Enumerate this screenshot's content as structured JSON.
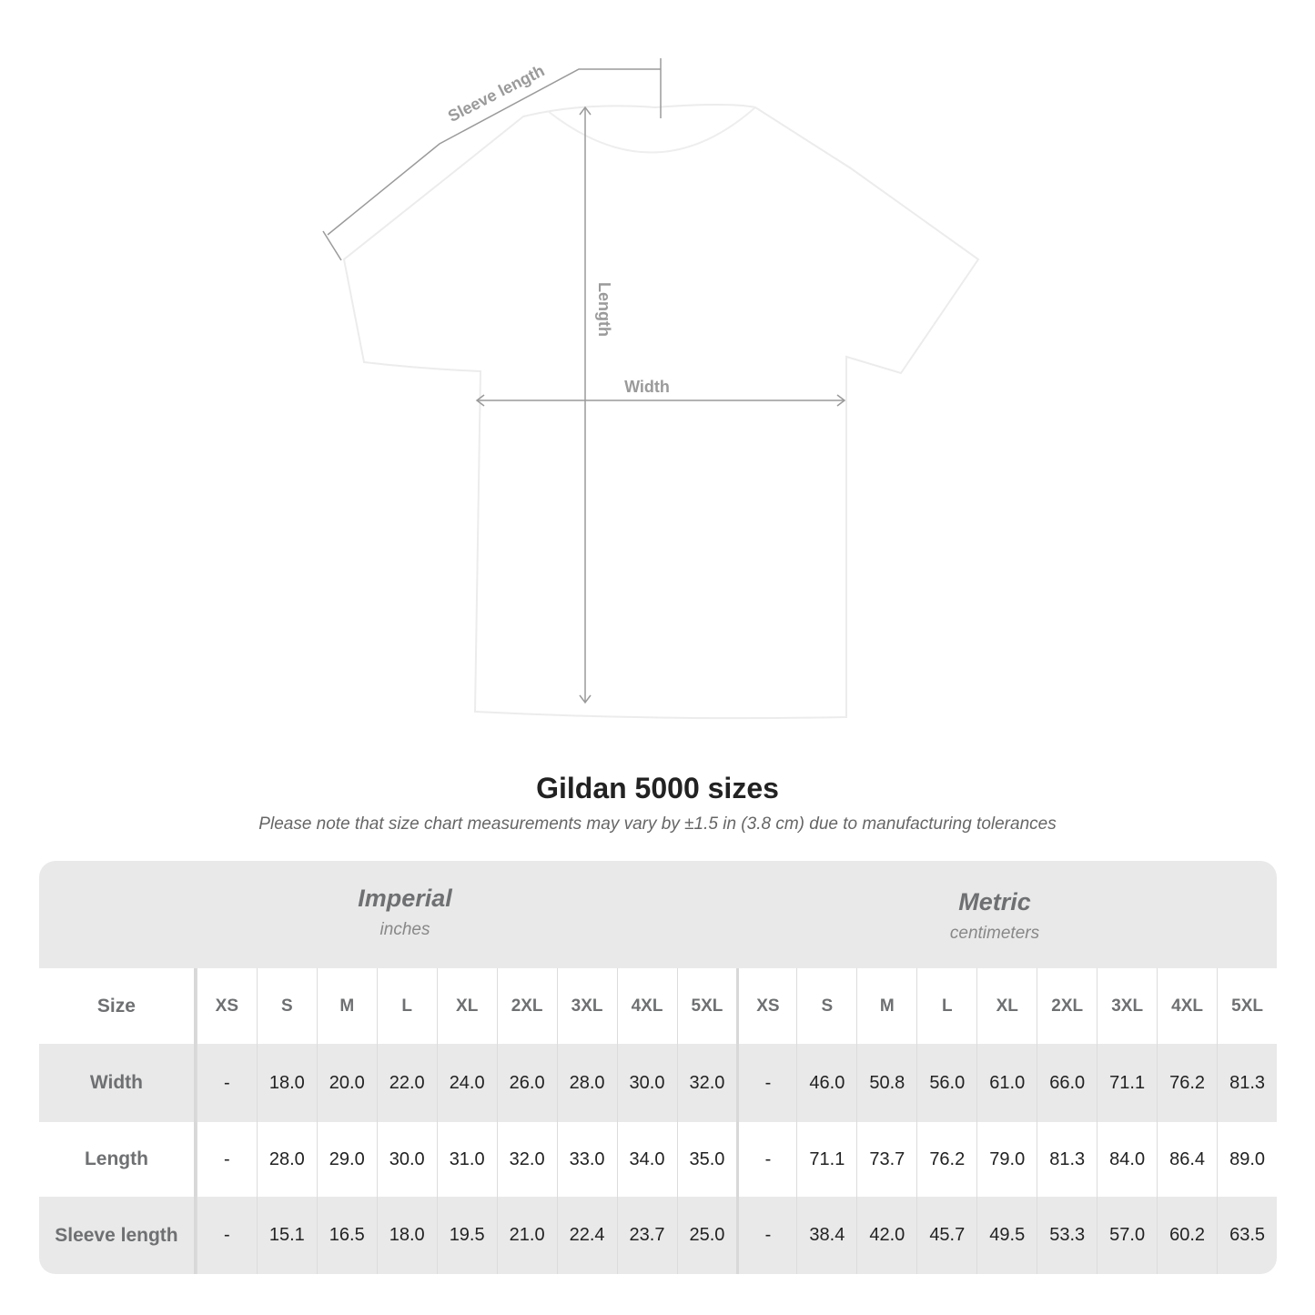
{
  "diagram": {
    "labels": {
      "sleeve": "Sleeve length",
      "length": "Length",
      "width": "Width"
    },
    "colors": {
      "guide": "#9a9a9a",
      "shirt": "#ffffff"
    }
  },
  "title": "Gildan 5000 sizes",
  "subtitle": "Please note that size chart measurements may vary by ±1.5 in (3.8 cm) due to manufacturing tolerances",
  "table": {
    "imperial": {
      "name": "Imperial",
      "unit": "inches"
    },
    "metric": {
      "name": "Metric",
      "unit": "centimeters"
    },
    "size_label": "Size",
    "sizes": [
      "XS",
      "S",
      "M",
      "L",
      "XL",
      "2XL",
      "3XL",
      "4XL",
      "5XL"
    ],
    "rows": [
      {
        "label": "Width",
        "imperial": [
          "-",
          "18.0",
          "20.0",
          "22.0",
          "24.0",
          "26.0",
          "28.0",
          "30.0",
          "32.0"
        ],
        "metric": [
          "-",
          "46.0",
          "50.8",
          "56.0",
          "61.0",
          "66.0",
          "71.1",
          "76.2",
          "81.3"
        ]
      },
      {
        "label": "Length",
        "imperial": [
          "-",
          "28.0",
          "29.0",
          "30.0",
          "31.0",
          "32.0",
          "33.0",
          "34.0",
          "35.0"
        ],
        "metric": [
          "-",
          "71.1",
          "73.7",
          "76.2",
          "79.0",
          "81.3",
          "84.0",
          "86.4",
          "89.0"
        ]
      },
      {
        "label": "Sleeve length",
        "imperial": [
          "-",
          "15.1",
          "16.5",
          "18.0",
          "19.5",
          "21.0",
          "22.4",
          "23.7",
          "25.0"
        ],
        "metric": [
          "-",
          "38.4",
          "42.0",
          "45.7",
          "49.5",
          "53.3",
          "57.0",
          "60.2",
          "63.5"
        ]
      }
    ]
  }
}
